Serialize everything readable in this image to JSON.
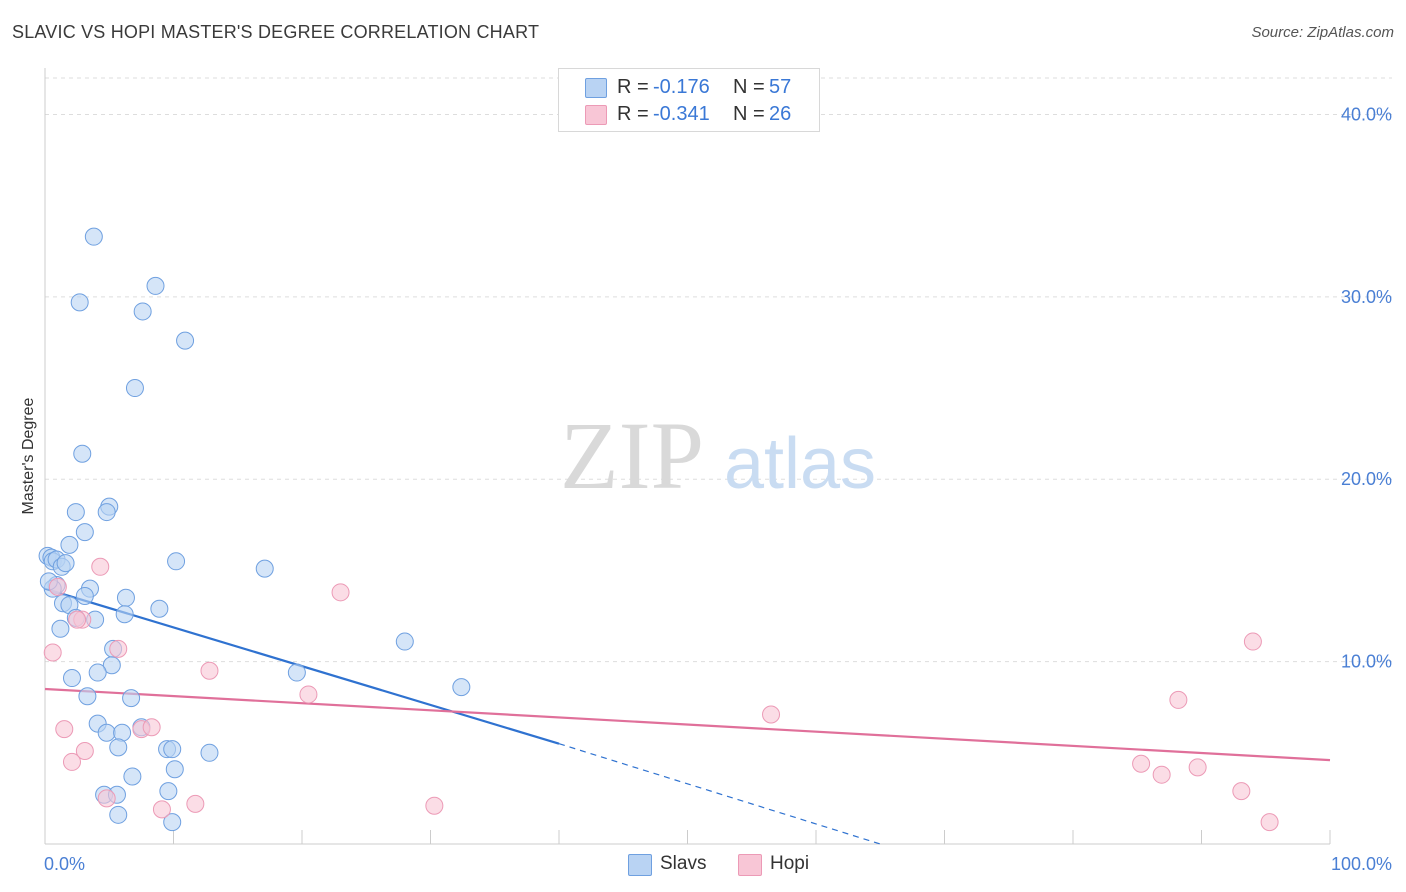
{
  "header": {
    "title": "SLAVIC VS HOPI MASTER'S DEGREE CORRELATION CHART",
    "source": "Source: ZipAtlas.com"
  },
  "watermark": {
    "zip": "ZIP",
    "atlas": "atlas"
  },
  "legend": {
    "rows": [
      {
        "r_label": "R =",
        "r_value": "-0.176",
        "n_label": "N =",
        "n_value": "57"
      },
      {
        "r_label": "R =",
        "r_value": "-0.341",
        "n_label": "N =",
        "n_value": "26"
      }
    ]
  },
  "bottom_legend": {
    "slavs": "Slavs",
    "hopi": "Hopi"
  },
  "colors": {
    "slavs_fill": "#b9d3f3",
    "slavs_stroke": "#6fa0e0",
    "slavs_line": "#2f72d0",
    "hopi_fill": "#f8c6d6",
    "hopi_stroke": "#ec9ab6",
    "hopi_line": "#e0709a",
    "grid": "#dddddd",
    "tick_text": "#4a7fd4"
  },
  "chart_data": {
    "type": "scatter",
    "title": "SLAVIC VS HOPI MASTER'S DEGREE CORRELATION CHART",
    "xlabel": "",
    "ylabel": "Master's Degree",
    "xlim": [
      0,
      100
    ],
    "ylim": [
      0,
      42
    ],
    "x_tick_labels": [
      "0.0%",
      "100.0%"
    ],
    "y_ticks": [
      10,
      20,
      30,
      40
    ],
    "y_tick_labels": [
      "10.0%",
      "20.0%",
      "30.0%",
      "40.0%"
    ],
    "grid": true,
    "legend_position": "top-center",
    "series": [
      {
        "name": "Slavs",
        "r": -0.176,
        "n": 57,
        "points": [
          [
            3.8,
            33.3
          ],
          [
            2.7,
            29.7
          ],
          [
            8.6,
            30.6
          ],
          [
            7.6,
            29.2
          ],
          [
            10.9,
            27.6
          ],
          [
            7.0,
            25.0
          ],
          [
            2.9,
            21.4
          ],
          [
            2.4,
            18.2
          ],
          [
            5.0,
            18.5
          ],
          [
            4.8,
            18.2
          ],
          [
            3.1,
            17.1
          ],
          [
            1.9,
            16.4
          ],
          [
            0.2,
            15.8
          ],
          [
            0.5,
            15.7
          ],
          [
            0.6,
            15.5
          ],
          [
            0.9,
            15.6
          ],
          [
            1.3,
            15.2
          ],
          [
            1.6,
            15.4
          ],
          [
            10.2,
            15.5
          ],
          [
            17.1,
            15.1
          ],
          [
            0.9,
            14.2
          ],
          [
            0.6,
            14.0
          ],
          [
            3.5,
            14.0
          ],
          [
            3.1,
            13.6
          ],
          [
            6.3,
            13.5
          ],
          [
            1.4,
            13.2
          ],
          [
            1.9,
            13.1
          ],
          [
            8.9,
            12.9
          ],
          [
            6.2,
            12.6
          ],
          [
            2.4,
            12.4
          ],
          [
            3.9,
            12.3
          ],
          [
            1.2,
            11.8
          ],
          [
            28.0,
            11.1
          ],
          [
            5.3,
            10.7
          ],
          [
            5.2,
            9.8
          ],
          [
            4.1,
            9.4
          ],
          [
            19.6,
            9.4
          ],
          [
            2.1,
            9.1
          ],
          [
            32.4,
            8.6
          ],
          [
            3.3,
            8.1
          ],
          [
            6.7,
            8.0
          ],
          [
            4.1,
            6.6
          ],
          [
            7.5,
            6.4
          ],
          [
            4.8,
            6.1
          ],
          [
            6.0,
            6.1
          ],
          [
            9.5,
            5.2
          ],
          [
            9.9,
            5.2
          ],
          [
            12.8,
            5.0
          ],
          [
            5.7,
            5.3
          ],
          [
            10.1,
            4.1
          ],
          [
            6.8,
            3.7
          ],
          [
            9.6,
            2.9
          ],
          [
            4.6,
            2.7
          ],
          [
            5.6,
            2.7
          ],
          [
            5.7,
            1.6
          ],
          [
            9.9,
            1.2
          ],
          [
            0.3,
            14.4
          ]
        ]
      },
      {
        "name": "Hopi",
        "r": -0.341,
        "n": 26,
        "points": [
          [
            4.3,
            15.2
          ],
          [
            23.0,
            13.8
          ],
          [
            1.0,
            14.1
          ],
          [
            2.9,
            12.3
          ],
          [
            0.6,
            10.5
          ],
          [
            5.7,
            10.7
          ],
          [
            12.8,
            9.5
          ],
          [
            20.5,
            8.2
          ],
          [
            56.5,
            7.1
          ],
          [
            88.2,
            7.9
          ],
          [
            94.0,
            11.1
          ],
          [
            1.5,
            6.3
          ],
          [
            7.5,
            6.3
          ],
          [
            8.3,
            6.4
          ],
          [
            3.1,
            5.1
          ],
          [
            2.1,
            4.5
          ],
          [
            85.3,
            4.4
          ],
          [
            86.9,
            3.8
          ],
          [
            89.7,
            4.2
          ],
          [
            93.1,
            2.9
          ],
          [
            4.8,
            2.5
          ],
          [
            9.1,
            1.9
          ],
          [
            11.7,
            2.2
          ],
          [
            30.3,
            2.1
          ],
          [
            95.3,
            1.2
          ],
          [
            2.5,
            12.3
          ]
        ]
      }
    ],
    "trend_lines": [
      {
        "series": "Slavs",
        "from": [
          0,
          14.0
        ],
        "to": [
          40,
          5.5
        ],
        "dashed_to": [
          65,
          0.0
        ]
      },
      {
        "series": "Hopi",
        "from": [
          0,
          8.5
        ],
        "to": [
          100,
          4.6
        ]
      }
    ]
  }
}
